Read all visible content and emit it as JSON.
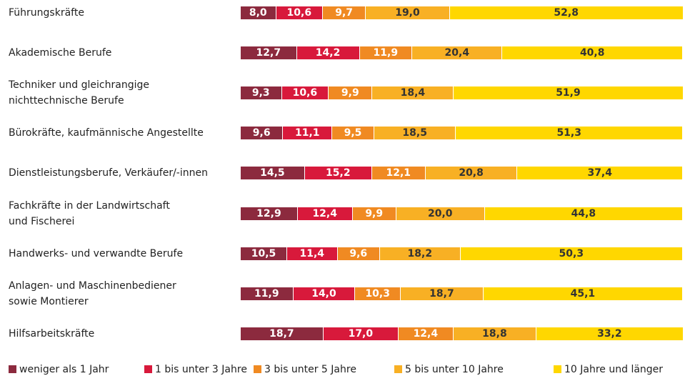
{
  "chart_data": {
    "type": "stacked-bar-horizontal",
    "categories": [
      "Führungskräfte",
      "Akademische Berufe",
      "Techniker und gleichrangige\nnichttechnische Berufe",
      "Bürokräfte, kaufmännische Angestellte",
      "Dienstleistungsberufe, Verkäufer/-innen",
      "Fachkräfte in der Landwirtschaft\nund Fischerei",
      "Handwerks- und verwandte Berufe",
      "Anlagen- und Maschinenbediener\nsowie Montierer",
      "Hilfsarbeitskräfte"
    ],
    "xlim": [
      0,
      100
    ],
    "series": [
      {
        "name": "weniger als 1 Jahr",
        "color": "#8c2a3e",
        "label_color": "#ffffff",
        "values": [
          8.0,
          12.7,
          9.3,
          9.6,
          14.5,
          12.9,
          10.5,
          11.9,
          18.7
        ],
        "value_labels": [
          "8,0",
          "12,7",
          "9,3",
          "9,6",
          "14,5",
          "12,9",
          "10,5",
          "11,9",
          "18,7"
        ]
      },
      {
        "name": "1 bis unter 3 Jahre",
        "color": "#d8193b",
        "label_color": "#ffffff",
        "values": [
          10.6,
          14.2,
          10.6,
          11.1,
          15.2,
          12.4,
          11.4,
          14.0,
          17.0
        ],
        "value_labels": [
          "10,6",
          "14,2",
          "10,6",
          "11,1",
          "15,2",
          "12,4",
          "11,4",
          "14,0",
          "17,0"
        ]
      },
      {
        "name": "3 bis unter 5 Jahre",
        "color": "#f08a22",
        "label_color": "#ffffff",
        "values": [
          9.7,
          11.9,
          9.9,
          9.5,
          12.1,
          9.9,
          9.6,
          10.3,
          12.4
        ],
        "value_labels": [
          "9,7",
          "11,9",
          "9,9",
          "9,5",
          "12,1",
          "9,9",
          "9,6",
          "10,3",
          "12,4"
        ]
      },
      {
        "name": "5 bis unter 10 Jahre",
        "color": "#f8b024",
        "label_color": "#333333",
        "values": [
          19.0,
          20.4,
          18.4,
          18.5,
          20.8,
          20.0,
          18.2,
          18.7,
          18.8
        ],
        "value_labels": [
          "19,0",
          "20,4",
          "18,4",
          "18,5",
          "20,8",
          "20,0",
          "18,2",
          "18,7",
          "18,8"
        ]
      },
      {
        "name": "10 Jahre und länger",
        "color": "#ffd700",
        "label_color": "#333333",
        "values": [
          52.8,
          40.8,
          51.9,
          51.3,
          37.4,
          44.8,
          50.3,
          45.1,
          33.2
        ],
        "value_labels": [
          "52,8",
          "40,8",
          "51,9",
          "51,3",
          "37,4",
          "44,8",
          "50,3",
          "45,1",
          "33,2"
        ]
      }
    ]
  }
}
